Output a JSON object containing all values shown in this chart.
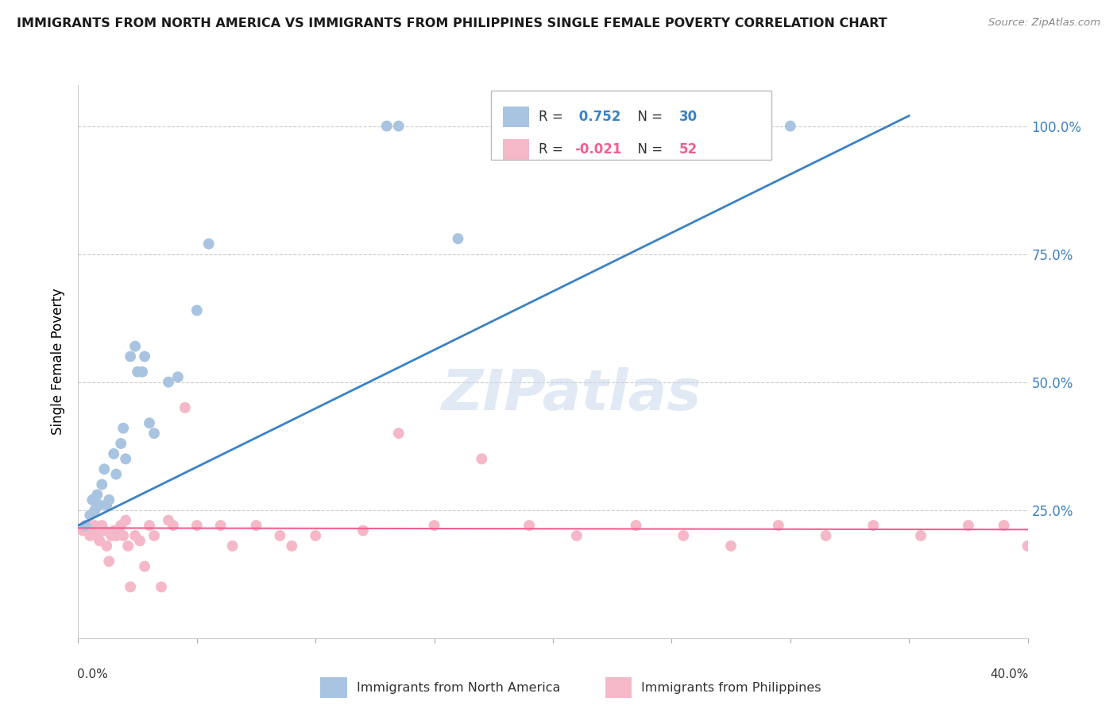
{
  "title": "IMMIGRANTS FROM NORTH AMERICA VS IMMIGRANTS FROM PHILIPPINES SINGLE FEMALE POVERTY CORRELATION CHART",
  "source": "Source: ZipAtlas.com",
  "ylabel": "Single Female Poverty",
  "legend_label_blue": "Immigrants from North America",
  "legend_label_pink": "Immigrants from Philippines",
  "r_blue": 0.752,
  "n_blue": 30,
  "r_pink": -0.021,
  "n_pink": 52,
  "blue_color": "#a8c4e0",
  "pink_color": "#f4b8c8",
  "blue_line_color": "#3b82c4",
  "pink_line_color": "#f06090",
  "background_color": "#ffffff",
  "blue_x": [
    0.003,
    0.005,
    0.006,
    0.007,
    0.008,
    0.009,
    0.01,
    0.011,
    0.012,
    0.013,
    0.015,
    0.016,
    0.018,
    0.019,
    0.02,
    0.022,
    0.024,
    0.025,
    0.027,
    0.028,
    0.03,
    0.032,
    0.038,
    0.042,
    0.05,
    0.055,
    0.13,
    0.135,
    0.16,
    0.3
  ],
  "blue_y": [
    0.22,
    0.24,
    0.27,
    0.25,
    0.28,
    0.26,
    0.3,
    0.33,
    0.26,
    0.27,
    0.36,
    0.32,
    0.38,
    0.41,
    0.35,
    0.55,
    0.57,
    0.52,
    0.52,
    0.55,
    0.42,
    0.4,
    0.5,
    0.51,
    0.64,
    0.77,
    1.0,
    1.0,
    0.78,
    1.0
  ],
  "pink_x": [
    0.002,
    0.004,
    0.005,
    0.006,
    0.007,
    0.008,
    0.009,
    0.01,
    0.011,
    0.012,
    0.013,
    0.014,
    0.015,
    0.016,
    0.017,
    0.018,
    0.019,
    0.02,
    0.021,
    0.022,
    0.024,
    0.026,
    0.028,
    0.03,
    0.032,
    0.035,
    0.038,
    0.04,
    0.045,
    0.05,
    0.06,
    0.065,
    0.075,
    0.085,
    0.09,
    0.1,
    0.12,
    0.135,
    0.15,
    0.17,
    0.19,
    0.21,
    0.235,
    0.255,
    0.275,
    0.295,
    0.315,
    0.335,
    0.355,
    0.375,
    0.39,
    0.4
  ],
  "pink_y": [
    0.21,
    0.22,
    0.2,
    0.21,
    0.22,
    0.2,
    0.19,
    0.22,
    0.21,
    0.18,
    0.15,
    0.2,
    0.21,
    0.2,
    0.21,
    0.22,
    0.2,
    0.23,
    0.18,
    0.1,
    0.2,
    0.19,
    0.14,
    0.22,
    0.2,
    0.1,
    0.23,
    0.22,
    0.45,
    0.22,
    0.22,
    0.18,
    0.22,
    0.2,
    0.18,
    0.2,
    0.21,
    0.4,
    0.22,
    0.35,
    0.22,
    0.2,
    0.22,
    0.2,
    0.18,
    0.22,
    0.2,
    0.22,
    0.2,
    0.22,
    0.22,
    0.18
  ],
  "blue_line_x0": 0.0,
  "blue_line_y0": 0.22,
  "blue_line_x1": 0.35,
  "blue_line_y1": 1.02,
  "pink_line_x0": 0.0,
  "pink_line_y0": 0.215,
  "pink_line_x1": 0.4,
  "pink_line_y1": 0.212,
  "xlim": [
    0.0,
    0.4
  ],
  "ylim": [
    0.0,
    1.08
  ],
  "ytick_values": [
    0.25,
    0.5,
    0.75,
    1.0
  ],
  "ytick_labels": [
    "25.0%",
    "50.0%",
    "75.0%",
    "100.0%"
  ]
}
